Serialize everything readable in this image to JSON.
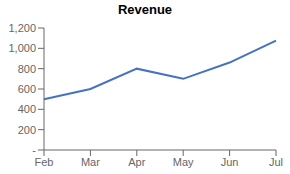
{
  "chart_data": {
    "type": "line",
    "title": "Revenue",
    "categories": [
      "Feb",
      "Mar",
      "Apr",
      "May",
      "Jun",
      "Jul"
    ],
    "values": [
      500,
      600,
      800,
      700,
      860,
      1075
    ],
    "color": "#4472C4",
    "ylim": [
      0,
      1200
    ],
    "yticks": [
      {
        "value": 0,
        "label": "-"
      },
      200,
      400,
      600,
      800,
      {
        "value": 1000,
        "label": "1,000"
      },
      {
        "value": 1200,
        "label": "1,200"
      }
    ],
    "grid": false
  }
}
